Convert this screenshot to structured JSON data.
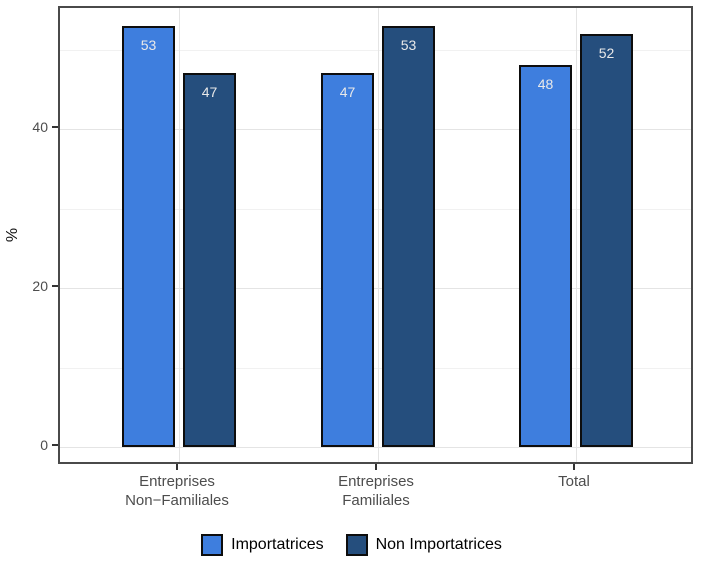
{
  "figure": {
    "background": "#FFFFFF",
    "panel_border_color": "#4A4A4A",
    "grid_major_color": "#E4E4E4",
    "grid_minor_color": "#F1F1F1",
    "axis_text_color": "#4D4D4D",
    "tick_color": "#333333",
    "bar_border_color": "#0D0D0D",
    "value_label_color": "#E9E9E9",
    "legend_text_color": "#000000"
  },
  "chart_data": {
    "type": "bar",
    "title": "",
    "xlabel": "",
    "ylabel": "%",
    "categories": [
      "Entreprises\nNon−Familiales",
      "Entreprises\nFamiliales",
      "Total"
    ],
    "series": [
      {
        "name": "Importatrices",
        "color": "#3E7EDE",
        "values": [
          53,
          47,
          48
        ]
      },
      {
        "name": "Non Importatrices",
        "color": "#254E7D",
        "values": [
          47,
          53,
          52
        ]
      }
    ],
    "yticks": [
      0,
      20,
      40
    ],
    "yticks_minor": [
      10,
      30,
      50
    ],
    "ylim": [
      0,
      55
    ],
    "grid": "horizontal major+minor, vertical major at category centers",
    "legend_position": "bottom",
    "bar_value_labels": "inside-top"
  }
}
